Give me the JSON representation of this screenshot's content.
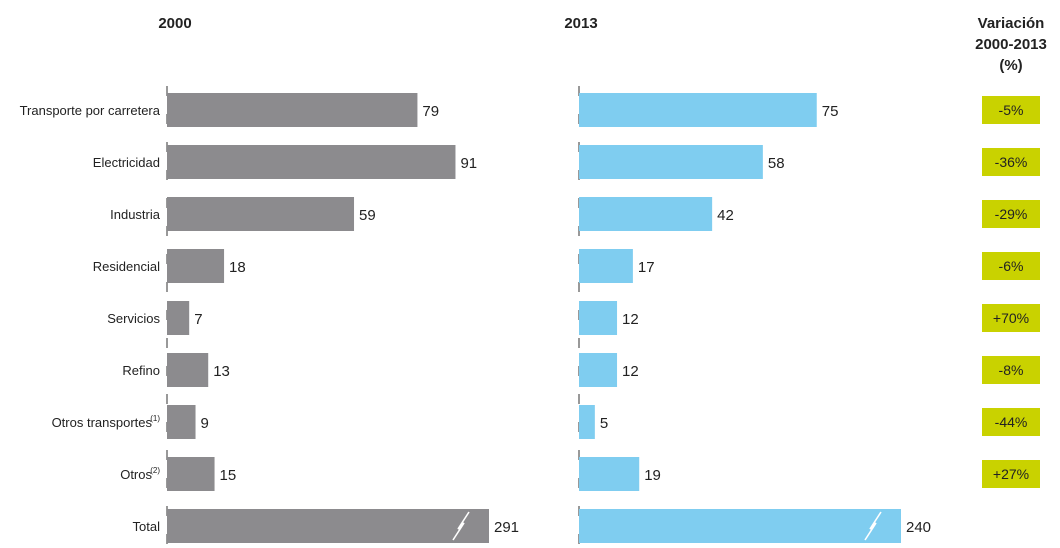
{
  "chart_data": {
    "type": "bar",
    "orientation": "horizontal",
    "categories": [
      "Transporte por carretera",
      "Electricidad",
      "Industria",
      "Residencial",
      "Servicios",
      "Refino",
      "Otros transportes",
      "Otros",
      "Total"
    ],
    "category_superscripts": [
      "",
      "",
      "",
      "",
      "",
      "",
      "(1)",
      "(2)",
      ""
    ],
    "series": [
      {
        "name": "2000",
        "values": [
          79,
          91,
          59,
          18,
          7,
          13,
          9,
          15,
          291
        ]
      },
      {
        "name": "2013",
        "values": [
          75,
          58,
          42,
          17,
          12,
          12,
          5,
          19,
          240
        ]
      }
    ],
    "variation": {
      "header_lines": [
        "Variación",
        "2000-2013",
        "(%)"
      ],
      "values": [
        "-5%",
        "-36%",
        "-29%",
        "-6%",
        "+70%",
        "-8%",
        "-44%",
        "+27%"
      ]
    },
    "axis_break_on_last": true,
    "colors": {
      "2000": "#8c8b8e",
      "2013": "#7fcdf0",
      "variation_box": "#c9d200",
      "text": "#222222"
    }
  }
}
